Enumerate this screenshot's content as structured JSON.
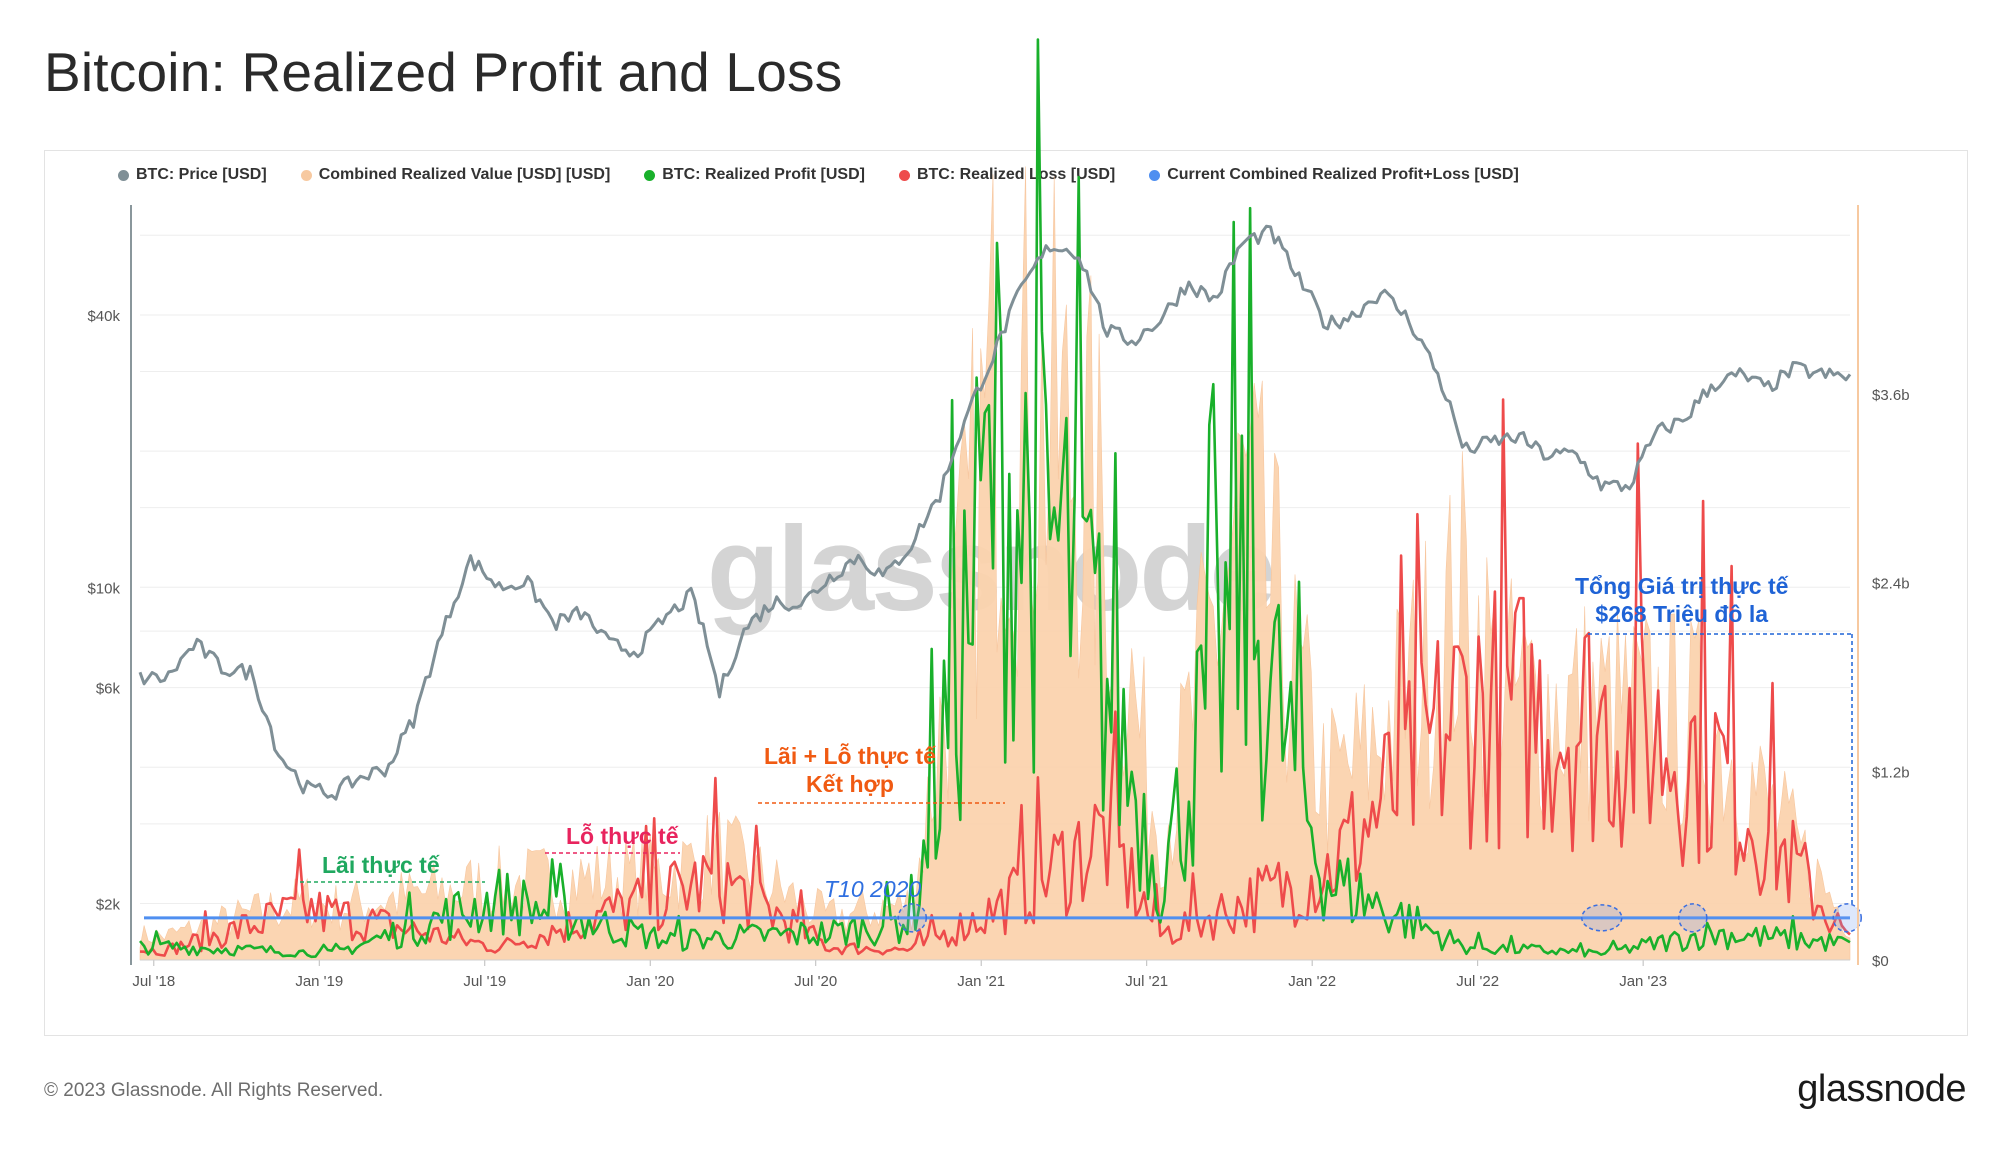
{
  "title": "Bitcoin: Realized Profit and Loss",
  "footer": {
    "copyright": "© 2023 Glassnode. All Rights Reserved.",
    "logo": "glassnode"
  },
  "watermark": "glassnode",
  "legend": [
    {
      "label": "BTC: Price [USD]",
      "color": "#7f8f96"
    },
    {
      "label": "Combined Realized Value [USD] [USD]",
      "color": "#f7c9a0"
    },
    {
      "label": "BTC: Realized Profit [USD]",
      "color": "#19b02b"
    },
    {
      "label": "BTC: Realized Loss [USD]",
      "color": "#ee4b4b"
    },
    {
      "label": "Current Combined Realized Profit+Loss [USD]",
      "color": "#4f8ff0"
    }
  ],
  "annotations": {
    "profit": "Lãi thực tế",
    "loss": "Lỗ thực tế",
    "combined_line1": "Lãi + Lỗ thực tế",
    "combined_line2": "Kết hợp",
    "oct2020": "T10 2020",
    "total_line1": "Tổng Giá trị thực tế",
    "total_line2": "$268 Triệu đô la"
  },
  "chart_data": {
    "type": "line",
    "x_ticks": [
      "Jul '18",
      "Jan '19",
      "Jul '19",
      "Jan '20",
      "Jul '20",
      "Jan '21",
      "Jul '21",
      "Jan '22",
      "Jul '22",
      "Jan '23"
    ],
    "y_left_ticks": [
      "$2k",
      "$6k",
      "$10k",
      "$40k"
    ],
    "y_right_ticks": [
      "$0",
      "$1.2b",
      "$2.4b",
      "$3.6b"
    ],
    "y_left_scale": "log",
    "y_right_range": [
      0,
      4800000000
    ],
    "current_combined_value_usd": 268000000,
    "series": [
      {
        "name": "BTC: Price [USD]",
        "dates": [
          "2018-07",
          "2018-08",
          "2018-09",
          "2018-10",
          "2018-11",
          "2018-12",
          "2019-01",
          "2019-02",
          "2019-03",
          "2019-04",
          "2019-05",
          "2019-06",
          "2019-07",
          "2019-08",
          "2019-09",
          "2019-10",
          "2019-11",
          "2019-12",
          "2020-01",
          "2020-02",
          "2020-03",
          "2020-04",
          "2020-05",
          "2020-06",
          "2020-07",
          "2020-08",
          "2020-09",
          "2020-10",
          "2020-11",
          "2020-12",
          "2021-01",
          "2021-02",
          "2021-03",
          "2021-04",
          "2021-05",
          "2021-06",
          "2021-07",
          "2021-08",
          "2021-09",
          "2021-10",
          "2021-11",
          "2021-12",
          "2022-01",
          "2022-02",
          "2022-03",
          "2022-04",
          "2022-05",
          "2022-06",
          "2022-07",
          "2022-08",
          "2022-09",
          "2022-10",
          "2022-11",
          "2022-12",
          "2023-01",
          "2023-02",
          "2023-03",
          "2023-04",
          "2023-05",
          "2023-06",
          "2023-07",
          "2023-08"
        ],
        "values": [
          6300,
          7500,
          6600,
          6500,
          4300,
          3600,
          3500,
          3800,
          4000,
          5200,
          8000,
          11500,
          10000,
          10300,
          8300,
          8800,
          7500,
          7200,
          8500,
          9600,
          5800,
          8200,
          9300,
          9200,
          10500,
          11700,
          10500,
          12500,
          16000,
          24000,
          33000,
          46000,
          57000,
          55000,
          37000,
          35000,
          39000,
          47000,
          43000,
          58000,
          61000,
          48000,
          38000,
          40000,
          45000,
          39000,
          30000,
          20000,
          21000,
          21500,
          19500,
          19800,
          16800,
          16700,
          22000,
          23500,
          28000,
          29500,
          27500,
          30500,
          29500,
          29200
        ]
      },
      {
        "name": "Combined Realized Value [USD] [USD]",
        "dates": [
          "2018-07",
          "2019-01",
          "2019-07",
          "2020-01",
          "2020-07",
          "2020-10",
          "2021-01",
          "2021-04",
          "2021-07",
          "2021-10",
          "2022-01",
          "2022-06",
          "2022-11",
          "2023-03",
          "2023-08"
        ],
        "values": [
          150000000,
          250000000,
          500000000,
          250000000,
          300000000,
          400000000,
          3000000000,
          2500000000,
          1000000000,
          1500000000,
          1000000000,
          2500000000,
          500000000,
          400000000,
          268000000
        ]
      },
      {
        "name": "BTC: Realized Profit [USD]",
        "dates": [
          "2018-07",
          "2019-01",
          "2019-07",
          "2020-01",
          "2020-07",
          "2020-10",
          "2021-01",
          "2021-04",
          "2021-07",
          "2021-10",
          "2022-01",
          "2022-06",
          "2022-11",
          "2023-03",
          "2023-08"
        ],
        "values": [
          100000000,
          50000000,
          450000000,
          150000000,
          200000000,
          300000000,
          3700000000,
          2800000000,
          600000000,
          2800000000,
          600000000,
          100000000,
          50000000,
          200000000,
          120000000
        ]
      },
      {
        "name": "BTC: Realized Loss [USD]",
        "dates": [
          "2018-07",
          "2018-12",
          "2019-07",
          "2020-03",
          "2020-07",
          "2020-10",
          "2021-01",
          "2021-05",
          "2021-07",
          "2022-01",
          "2022-06",
          "2022-11",
          "2023-03",
          "2023-08"
        ],
        "values": [
          80000000,
          400000000,
          100000000,
          650000000,
          100000000,
          80000000,
          400000000,
          1000000000,
          200000000,
          700000000,
          2000000000,
          1900000000,
          1600000000,
          150000000
        ]
      }
    ]
  }
}
